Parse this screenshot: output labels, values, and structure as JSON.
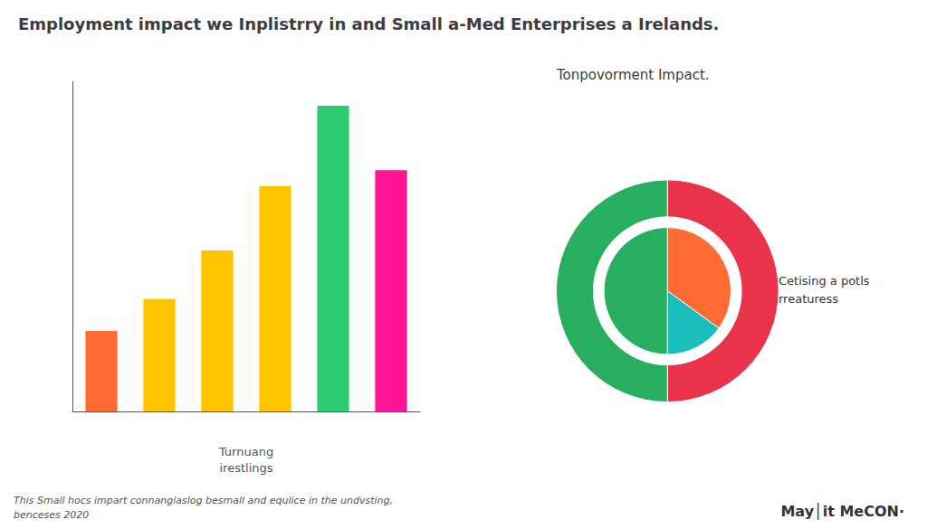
{
  "chart_data": [
    {
      "type": "bar",
      "title": "Employment impact we Inplistrry in and Small a-Med Enterprises a Irelands.",
      "xlabel": "Turnuang\nirestlings",
      "categories": [
        null,
        null,
        null,
        null,
        null,
        null
      ],
      "values": [
        2.5,
        3.5,
        5.0,
        7.0,
        9.5,
        7.5
      ],
      "colors": [
        "#FF6B35",
        "#FFC300",
        "#FFC300",
        "#FFC300",
        "#2ECC71",
        "#FF1493"
      ],
      "ylim": [
        0,
        10.26
      ],
      "tick_labels": false,
      "grid": false,
      "annotations": [
        "This Small hocs impart connangiaslog besmall and equlice in the undvsting,\nbenceses 2020"
      ]
    },
    {
      "type": "pie",
      "title": "Tonpovorment Impact.",
      "series": [
        {
          "values": [
            180,
            180
          ],
          "colors": [
            "#E8334A",
            "#27AE60"
          ]
        },
        {
          "values": [
            126,
            54,
            180
          ],
          "colors": [
            "#FF6B35",
            "#1ABCBC",
            "#27AE60"
          ]
        }
      ],
      "annotations": [
        "Cetising a potls\nrreaturess",
        "May│it MeCON·"
      ]
    }
  ]
}
